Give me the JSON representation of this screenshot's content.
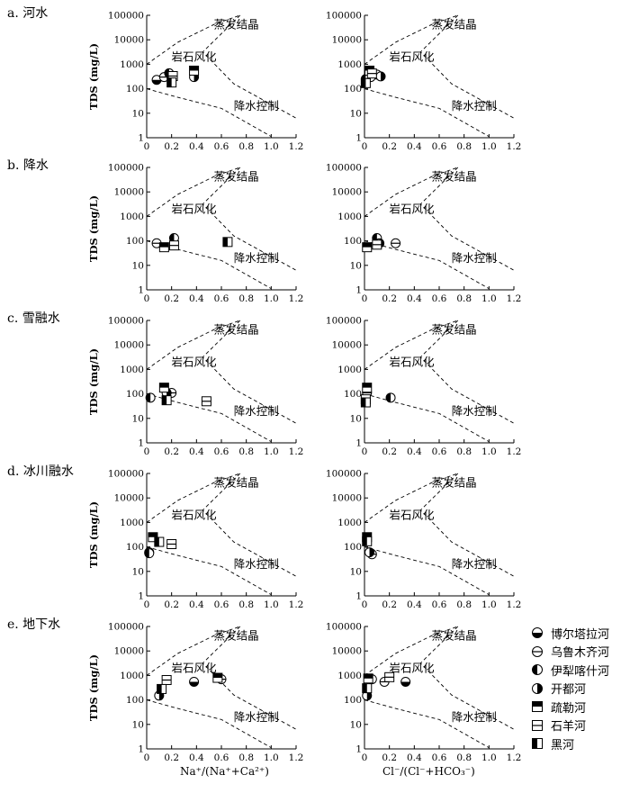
{
  "panels": [
    {
      "label": "a. 河水"
    },
    {
      "label": "b. 降水"
    },
    {
      "label": "c. 雪融水"
    },
    {
      "label": "d. 冰川融水"
    },
    {
      "label": "e. 地下水"
    }
  ],
  "legend": [
    {
      "name": "博尔塔拉河",
      "marker": "half-bottom"
    },
    {
      "name": "乌鲁木齐河",
      "marker": "circle-line"
    },
    {
      "name": "伊犁喀什河",
      "marker": "half-left"
    },
    {
      "name": "开都河",
      "marker": "half-right"
    },
    {
      "name": "疏勒河",
      "marker": "square-half-top"
    },
    {
      "name": "石羊河",
      "marker": "square-line"
    },
    {
      "name": "黑河",
      "marker": "square-half-left"
    }
  ],
  "axes": {
    "ylabel": "TDS (mg/L)",
    "xlabel_left": "Na⁺/(Na⁺+Ca²⁺)",
    "xlabel_right": "Cl⁻/(Cl⁻+HCO₃⁻)",
    "x_ticks": [
      "0",
      "0.2",
      "0.4",
      "0.6",
      "0.8",
      "1.0",
      "1.2"
    ],
    "y_ticks": [
      "1",
      "10",
      "100",
      "1000",
      "10000",
      "100000"
    ],
    "xlim": [
      0,
      1.2
    ],
    "ylim": [
      1,
      100000
    ],
    "yscale": "log"
  },
  "region_labels": {
    "evaporation": "蒸发结晶",
    "weathering": "岩石风化",
    "precipitation": "降水控制"
  },
  "chart_data": [
    {
      "type": "scatter",
      "panel": "a. 河水",
      "xlabel": "Na⁺/(Na⁺+Ca²⁺)",
      "ylabel": "TDS (mg/L)",
      "xlim": [
        0,
        1.2
      ],
      "ylim": [
        1,
        100000
      ],
      "series": [
        {
          "name": "博尔塔拉河",
          "points": [
            [
              0.08,
              230
            ]
          ]
        },
        {
          "name": "乌鲁木齐河",
          "points": [
            [
              0.14,
              300
            ]
          ]
        },
        {
          "name": "伊犁喀什河",
          "points": [
            [
              0.18,
              430
            ]
          ]
        },
        {
          "name": "开都河",
          "points": [
            [
              0.38,
              300
            ]
          ]
        },
        {
          "name": "疏勒河",
          "points": [
            [
              0.38,
              550
            ]
          ]
        },
        {
          "name": "石羊河",
          "points": [
            [
              0.21,
              330
            ]
          ]
        },
        {
          "name": "黑河",
          "points": [
            [
              0.2,
              180
            ]
          ]
        }
      ]
    },
    {
      "type": "scatter",
      "panel": "a. 河水",
      "xlabel": "Cl⁻/(Cl⁻+HCO₃⁻)",
      "ylabel": "TDS (mg/L)",
      "xlim": [
        0,
        1.2
      ],
      "ylim": [
        1,
        100000
      ],
      "series": [
        {
          "name": "博尔塔拉河",
          "points": [
            [
              0.1,
              380
            ]
          ]
        },
        {
          "name": "乌鲁木齐河",
          "points": [
            [
              0.05,
              300
            ]
          ]
        },
        {
          "name": "伊犁喀什河",
          "points": [
            [
              0.01,
              250
            ]
          ]
        },
        {
          "name": "开都河",
          "points": [
            [
              0.13,
              320
            ]
          ]
        },
        {
          "name": "疏勒河",
          "points": [
            [
              0.04,
              550
            ]
          ]
        },
        {
          "name": "石羊河",
          "points": [
            [
              0.06,
              420
            ]
          ]
        },
        {
          "name": "黑河",
          "points": [
            [
              0.01,
              170
            ]
          ]
        }
      ]
    },
    {
      "type": "scatter",
      "panel": "b. 降水",
      "xlabel": "Na⁺/(Na⁺+Ca²⁺)",
      "ylabel": "TDS (mg/L)",
      "xlim": [
        0,
        1.2
      ],
      "ylim": [
        1,
        100000
      ],
      "series": [
        {
          "name": "乌鲁木齐河",
          "points": [
            [
              0.08,
              80
            ]
          ]
        },
        {
          "name": "伊犁喀什河",
          "points": [
            [
              0.22,
              130
            ]
          ]
        },
        {
          "name": "疏勒河",
          "points": [
            [
              0.14,
              55
            ]
          ]
        },
        {
          "name": "石羊河",
          "points": [
            [
              0.22,
              65
            ]
          ]
        },
        {
          "name": "黑河",
          "points": [
            [
              0.65,
              90
            ]
          ]
        }
      ]
    },
    {
      "type": "scatter",
      "panel": "b. 降水",
      "xlabel": "Cl⁻/(Cl⁻+HCO₃⁻)",
      "ylabel": "TDS (mg/L)",
      "xlim": [
        0,
        1.2
      ],
      "ylim": [
        1,
        100000
      ],
      "series": [
        {
          "name": "乌鲁木齐河",
          "points": [
            [
              0.25,
              80
            ]
          ]
        },
        {
          "name": "伊犁喀什河",
          "points": [
            [
              0.1,
              130
            ]
          ]
        },
        {
          "name": "开都河",
          "points": [
            [
              0.12,
              80
            ]
          ]
        },
        {
          "name": "疏勒河",
          "points": [
            [
              0.02,
              55
            ]
          ]
        },
        {
          "name": "石羊河",
          "points": [
            [
              0.1,
              70
            ]
          ]
        }
      ]
    },
    {
      "type": "scatter",
      "panel": "c. 雪融水",
      "xlabel": "Na⁺/(Na⁺+Ca²⁺)",
      "ylabel": "TDS (mg/L)",
      "xlim": [
        0,
        1.2
      ],
      "ylim": [
        1,
        100000
      ],
      "series": [
        {
          "name": "乌鲁木齐河",
          "points": [
            [
              0.2,
              110
            ]
          ]
        },
        {
          "name": "伊犁喀什河",
          "points": [
            [
              0.03,
              70
            ]
          ]
        },
        {
          "name": "开都河",
          "points": [
            [
              0.16,
              110
            ]
          ]
        },
        {
          "name": "疏勒河",
          "points": [
            [
              0.14,
              180
            ]
          ]
        },
        {
          "name": "石羊河",
          "points": [
            [
              0.48,
              50
            ]
          ]
        },
        {
          "name": "黑河",
          "points": [
            [
              0.16,
              55
            ]
          ]
        }
      ]
    },
    {
      "type": "scatter",
      "panel": "c. 雪融水",
      "xlabel": "Cl⁻/(Cl⁻+HCO₃⁻)",
      "ylabel": "TDS (mg/L)",
      "xlim": [
        0,
        1.2
      ],
      "ylim": [
        1,
        100000
      ],
      "series": [
        {
          "name": "乌鲁木齐河",
          "points": [
            [
              0.02,
              110
            ]
          ]
        },
        {
          "name": "伊犁喀什河",
          "points": [
            [
              0.21,
              70
            ]
          ]
        },
        {
          "name": "疏勒河",
          "points": [
            [
              0.02,
              180
            ]
          ]
        },
        {
          "name": "石羊河",
          "points": [
            [
              0.01,
              60
            ]
          ]
        },
        {
          "name": "黑河",
          "points": [
            [
              0.01,
              45
            ]
          ]
        }
      ]
    },
    {
      "type": "scatter",
      "panel": "d. 冰川融水",
      "xlabel": "Na⁺/(Na⁺+Ca²⁺)",
      "ylabel": "TDS (mg/L)",
      "xlim": [
        0,
        1.2
      ],
      "ylim": [
        1,
        100000
      ],
      "series": [
        {
          "name": "乌鲁木齐河",
          "points": [
            [
              0.02,
              60
            ]
          ]
        },
        {
          "name": "伊犁喀什河",
          "points": [
            [
              0.02,
              55
            ]
          ]
        },
        {
          "name": "疏勒河",
          "points": [
            [
              0.05,
              250
            ]
          ]
        },
        {
          "name": "石羊河",
          "points": [
            [
              0.2,
              130
            ]
          ]
        },
        {
          "name": "黑河",
          "points": [
            [
              0.1,
              160
            ]
          ]
        }
      ]
    },
    {
      "type": "scatter",
      "panel": "d. 冰川融水",
      "xlabel": "Cl⁻/(Cl⁻+HCO₃⁻)",
      "ylabel": "TDS (mg/L)",
      "xlim": [
        0,
        1.2
      ],
      "ylim": [
        1,
        100000
      ],
      "series": [
        {
          "name": "乌鲁木齐河",
          "points": [
            [
              0.06,
              50
            ]
          ]
        },
        {
          "name": "开都河",
          "points": [
            [
              0.04,
              60
            ]
          ]
        },
        {
          "name": "疏勒河",
          "points": [
            [
              0.02,
              250
            ]
          ]
        },
        {
          "name": "黑河",
          "points": [
            [
              0.02,
              170
            ]
          ]
        }
      ]
    },
    {
      "type": "scatter",
      "panel": "e. 地下水",
      "xlabel": "Na⁺/(Na⁺+Ca²⁺)",
      "ylabel": "TDS (mg/L)",
      "xlim": [
        0,
        1.2
      ],
      "ylim": [
        1,
        100000
      ],
      "series": [
        {
          "name": "博尔塔拉河",
          "points": [
            [
              0.38,
              550
            ]
          ]
        },
        {
          "name": "乌鲁木齐河",
          "points": [
            [
              0.6,
              700
            ]
          ]
        },
        {
          "name": "开都河",
          "points": [
            [
              0.1,
              150
            ]
          ]
        },
        {
          "name": "疏勒河",
          "points": [
            [
              0.57,
              800
            ]
          ]
        },
        {
          "name": "石羊河",
          "points": [
            [
              0.16,
              650
            ]
          ]
        },
        {
          "name": "黑河",
          "points": [
            [
              0.12,
              280
            ]
          ]
        }
      ]
    },
    {
      "type": "scatter",
      "panel": "e. 地下水",
      "xlabel": "Cl⁻/(Cl⁻+HCO₃⁻)",
      "ylabel": "TDS (mg/L)",
      "xlim": [
        0,
        1.2
      ],
      "ylim": [
        1,
        100000
      ],
      "series": [
        {
          "name": "博尔塔拉河",
          "points": [
            [
              0.33,
              550
            ]
          ]
        },
        {
          "name": "乌鲁木齐河",
          "points": [
            [
              0.16,
              550
            ]
          ]
        },
        {
          "name": "伊犁喀什河",
          "points": [
            [
              0.06,
              700
            ]
          ]
        },
        {
          "name": "开都河",
          "points": [
            [
              0.02,
              150
            ]
          ]
        },
        {
          "name": "疏勒河",
          "points": [
            [
              0.03,
              750
            ]
          ]
        },
        {
          "name": "石羊河",
          "points": [
            [
              0.2,
              850
            ]
          ]
        },
        {
          "name": "黑河",
          "points": [
            [
              0.02,
              300
            ]
          ]
        }
      ]
    }
  ]
}
